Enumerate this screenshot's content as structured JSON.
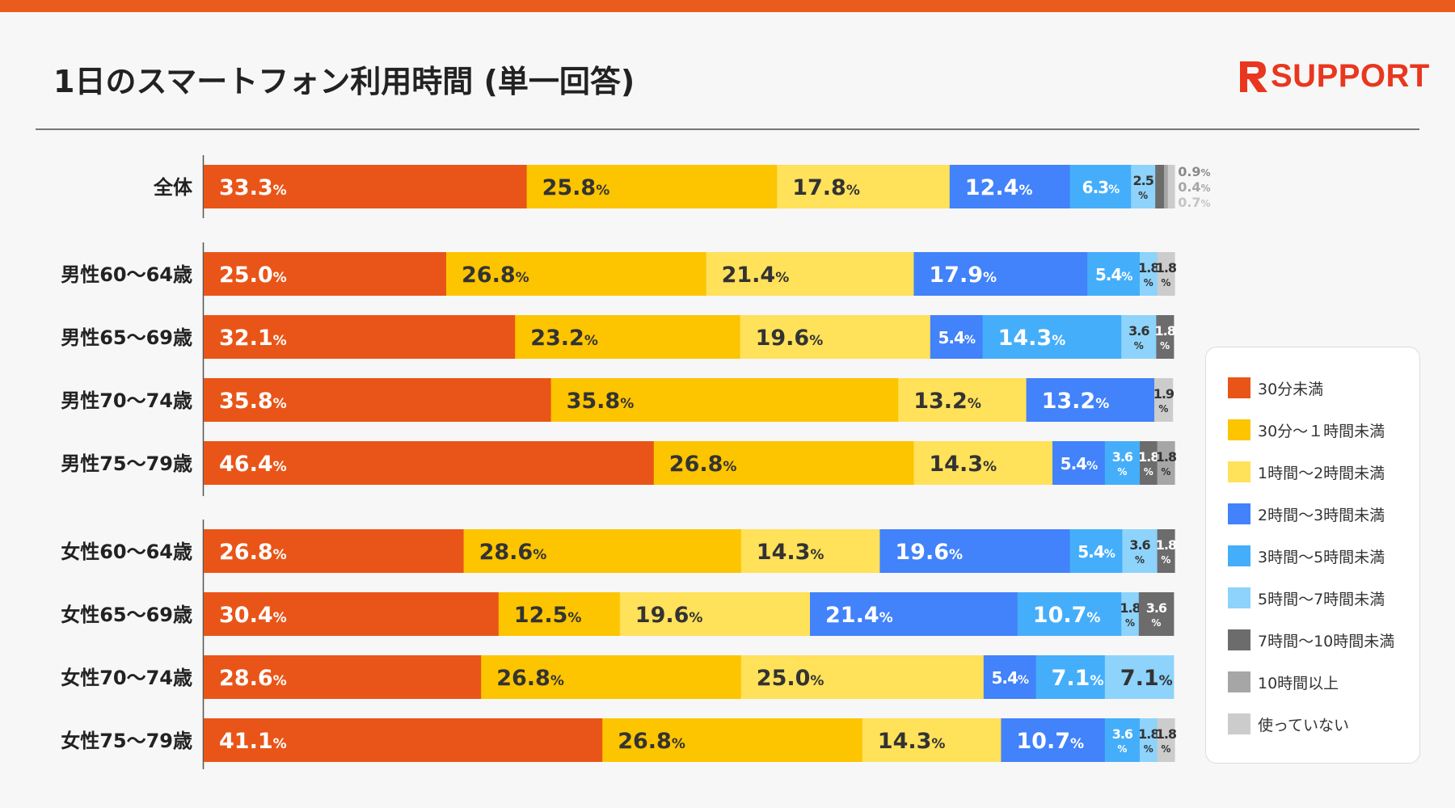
{
  "title": "1日のスマートフォン利用時間 (単一回答)",
  "brand": {
    "logo_text": "SUPPORT",
    "logo_letter": "R"
  },
  "chart_data": {
    "type": "bar",
    "orientation": "horizontal-stacked-100",
    "unit": "%",
    "categories": [
      "全体",
      "男性60〜64歳",
      "男性65〜69歳",
      "男性70〜74歳",
      "男性75〜79歳",
      "女性60〜64歳",
      "女性65〜69歳",
      "女性70〜74歳",
      "女性75〜79歳"
    ],
    "series": [
      {
        "name": "30分未満",
        "color": "#e95518",
        "values": [
          33.3,
          25.0,
          32.1,
          35.8,
          46.4,
          26.8,
          30.4,
          28.6,
          41.1
        ]
      },
      {
        "name": "30分〜１時間未満",
        "color": "#fdc400",
        "values": [
          25.8,
          26.8,
          23.2,
          35.8,
          26.8,
          28.6,
          12.5,
          26.8,
          26.8
        ]
      },
      {
        "name": "1時間〜2時間未満",
        "color": "#ffe15a",
        "values": [
          17.8,
          21.4,
          19.6,
          13.2,
          14.3,
          14.3,
          19.6,
          25.0,
          14.3
        ]
      },
      {
        "name": "2時間〜3時間未満",
        "color": "#4282fa",
        "values": [
          12.4,
          17.9,
          5.4,
          13.2,
          5.4,
          19.6,
          21.4,
          5.4,
          10.7
        ]
      },
      {
        "name": "3時間〜5時間未満",
        "color": "#45aefa",
        "values": [
          6.3,
          5.4,
          14.3,
          0,
          3.6,
          5.4,
          10.7,
          7.1,
          3.6
        ]
      },
      {
        "name": "5時間〜7時間未満",
        "color": "#8dd3fb",
        "values": [
          2.5,
          1.8,
          3.6,
          0,
          0,
          3.6,
          1.8,
          7.1,
          1.8
        ]
      },
      {
        "name": "7時間〜10時間未満",
        "color": "#6c6c6c",
        "values": [
          0.9,
          0,
          1.8,
          0,
          1.8,
          1.8,
          3.6,
          0,
          0
        ]
      },
      {
        "name": "10時間以上",
        "color": "#a6a6a6",
        "values": [
          0.4,
          0,
          0,
          0,
          1.8,
          0,
          0,
          0,
          0
        ]
      },
      {
        "name": "使っていない",
        "color": "#cccccc",
        "values": [
          0.7,
          1.8,
          0,
          1.9,
          0,
          0,
          0,
          0,
          1.8
        ]
      }
    ],
    "label_overrides": {
      "全体": {
        "7時間〜10時間未満": "outside",
        "10時間以上": "outside",
        "使っていない": "outside"
      },
      "男性75〜79歳": {
        "7時間〜10時間未満": "1.8",
        "10時間以上": "1.8"
      }
    },
    "legend_position": "right",
    "xlim": [
      0,
      100
    ]
  }
}
